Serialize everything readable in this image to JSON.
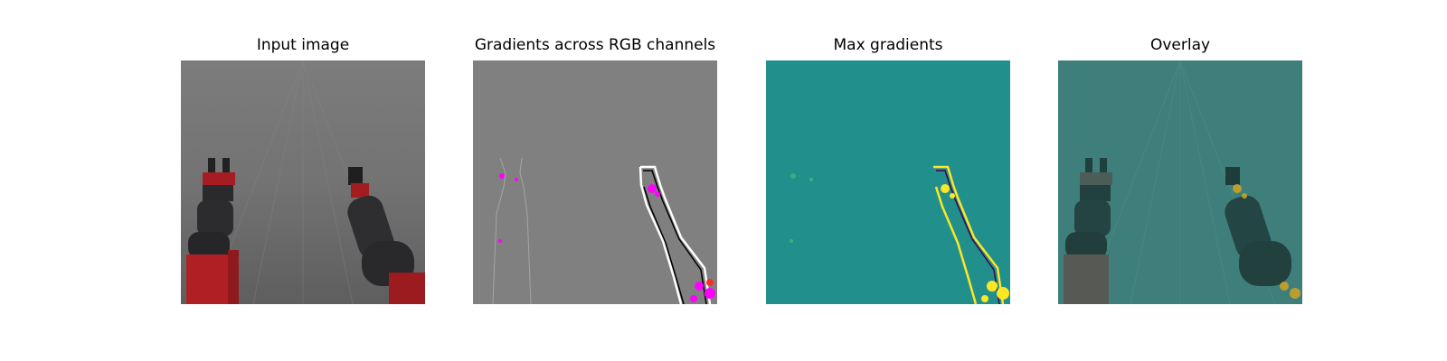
{
  "figure": {
    "panels": [
      {
        "title": "Input image"
      },
      {
        "title": "Gradients across RGB channels"
      },
      {
        "title": "Max gradients"
      },
      {
        "title": "Overlay"
      }
    ]
  },
  "colors": {
    "background": "#ffffff",
    "input_backdrop": "#7a7a7a",
    "gradient_neutral": "#808080",
    "max_gradient_base": "#21908c",
    "max_gradient_high": "#fde725",
    "overlay_tint": "#2a7f7a",
    "robot_red": "#b01f24",
    "robot_dark": "#2c2c2e"
  }
}
